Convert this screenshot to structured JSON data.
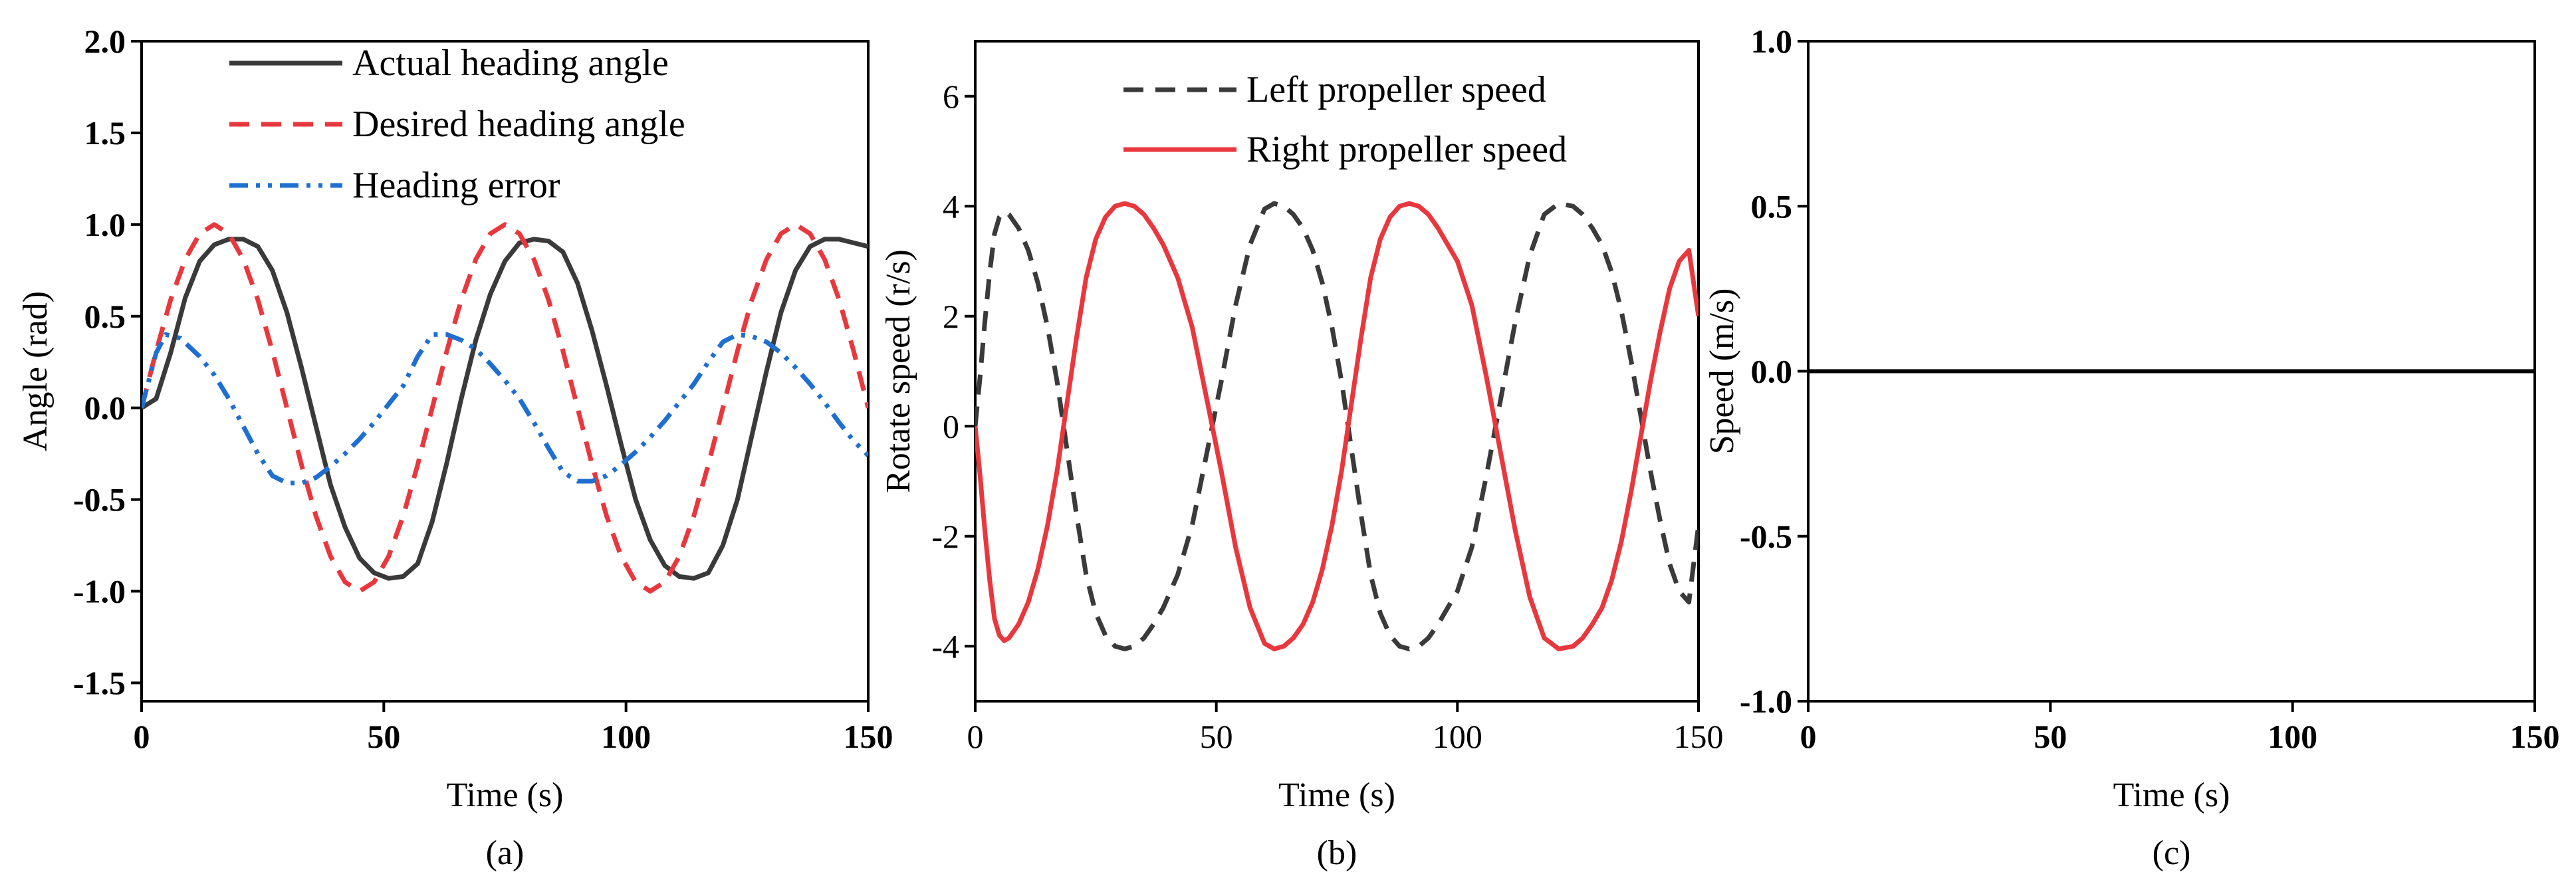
{
  "figure": {
    "captions": [
      "(a)",
      "(b)",
      "(c)"
    ]
  },
  "chart_data": [
    {
      "type": "line",
      "caption": "(a)",
      "xlabel": "Time (s)",
      "ylabel": "Angle (rad)",
      "xlim": [
        0,
        150
      ],
      "ylim": [
        -1.6,
        2.0
      ],
      "xticks": [
        0,
        50,
        100,
        150
      ],
      "yticks": [
        -1.5,
        -1.0,
        -0.5,
        0.0,
        0.5,
        1.0,
        1.5,
        2.0
      ],
      "ytick_labels": [
        "-1.5",
        "-1.0",
        "-0.5",
        "0.0",
        "0.5",
        "1.0",
        "1.5",
        "2.0"
      ],
      "tick_bold": true,
      "grid": false,
      "legend_position": "top-center",
      "series": [
        {
          "name": "Actual heading angle",
          "color": "#3a3a3a",
          "dash": "solid",
          "x": [
            0,
            3,
            6,
            9,
            12,
            15,
            18,
            21,
            24,
            27,
            30,
            33,
            36,
            39,
            42,
            45,
            48,
            51,
            54,
            57,
            60,
            63,
            66,
            69,
            72,
            75,
            78,
            81,
            84,
            87,
            90,
            93,
            96,
            99,
            102,
            105,
            108,
            111,
            114,
            117,
            120,
            123,
            126,
            129,
            132,
            135,
            138,
            141,
            144,
            147,
            150
          ],
          "y": [
            0.0,
            0.05,
            0.3,
            0.6,
            0.8,
            0.89,
            0.92,
            0.92,
            0.88,
            0.75,
            0.52,
            0.22,
            -0.1,
            -0.42,
            -0.65,
            -0.82,
            -0.9,
            -0.93,
            -0.92,
            -0.85,
            -0.62,
            -0.3,
            0.05,
            0.37,
            0.62,
            0.8,
            0.9,
            0.92,
            0.91,
            0.85,
            0.68,
            0.42,
            0.12,
            -0.2,
            -0.5,
            -0.72,
            -0.86,
            -0.92,
            -0.93,
            -0.9,
            -0.75,
            -0.5,
            -0.15,
            0.2,
            0.52,
            0.75,
            0.88,
            0.92,
            0.92,
            0.9,
            0.88
          ]
        },
        {
          "name": "Desired heading angle",
          "color": "#e8383d",
          "dash": "dashed",
          "x": [
            0,
            3,
            6,
            9,
            12,
            15,
            18,
            21,
            24,
            27,
            30,
            33,
            36,
            39,
            42,
            45,
            48,
            51,
            54,
            57,
            60,
            63,
            66,
            69,
            72,
            75,
            78,
            81,
            84,
            87,
            90,
            93,
            96,
            99,
            102,
            105,
            108,
            111,
            114,
            117,
            120,
            123,
            126,
            129,
            132,
            135,
            138,
            141,
            144,
            147,
            150
          ],
          "y": [
            0.0,
            0.31,
            0.59,
            0.81,
            0.95,
            1.0,
            0.95,
            0.81,
            0.59,
            0.31,
            0.0,
            -0.31,
            -0.59,
            -0.81,
            -0.95,
            -1.0,
            -0.95,
            -0.81,
            -0.59,
            -0.31,
            0.0,
            0.31,
            0.59,
            0.81,
            0.95,
            1.0,
            0.95,
            0.81,
            0.59,
            0.31,
            0.0,
            -0.31,
            -0.59,
            -0.81,
            -0.95,
            -1.0,
            -0.95,
            -0.81,
            -0.59,
            -0.31,
            0.0,
            0.31,
            0.59,
            0.81,
            0.95,
            1.0,
            0.95,
            0.81,
            0.59,
            0.31,
            0.0
          ]
        },
        {
          "name": "Heading error",
          "color": "#1f6fd1",
          "dash": "dash-dot-dot",
          "x": [
            0,
            3,
            5,
            8,
            12,
            15,
            18,
            21,
            24,
            27,
            30,
            33,
            36,
            39,
            42,
            45,
            48,
            51,
            54,
            57,
            60,
            63,
            66,
            69,
            72,
            75,
            78,
            81,
            84,
            87,
            90,
            93,
            96,
            99,
            102,
            105,
            108,
            111,
            114,
            117,
            120,
            123,
            126,
            129,
            132,
            135,
            138,
            141,
            144,
            147,
            150
          ],
          "y": [
            0.0,
            0.3,
            0.4,
            0.38,
            0.28,
            0.18,
            0.05,
            -0.1,
            -0.25,
            -0.37,
            -0.41,
            -0.41,
            -0.38,
            -0.32,
            -0.25,
            -0.17,
            -0.08,
            0.02,
            0.12,
            0.28,
            0.4,
            0.4,
            0.37,
            0.32,
            0.24,
            0.15,
            0.05,
            -0.08,
            -0.22,
            -0.35,
            -0.4,
            -0.4,
            -0.37,
            -0.31,
            -0.24,
            -0.16,
            -0.07,
            0.03,
            0.13,
            0.25,
            0.36,
            0.4,
            0.39,
            0.36,
            0.3,
            0.22,
            0.13,
            0.03,
            -0.08,
            -0.18,
            -0.26
          ]
        }
      ]
    },
    {
      "type": "line",
      "caption": "(b)",
      "xlabel": "Time (s)",
      "ylabel": "Rotate speed (r/s)",
      "xlim": [
        0,
        150
      ],
      "ylim": [
        -5,
        7
      ],
      "xticks": [
        0,
        50,
        100,
        150
      ],
      "yticks": [
        -4,
        -2,
        0,
        2,
        4,
        6
      ],
      "ytick_labels": [
        "-4",
        "-2",
        "0",
        "2",
        "4",
        "6"
      ],
      "tick_bold": false,
      "grid": false,
      "legend_position": "top-right",
      "series": [
        {
          "name": "Left propeller speed",
          "color": "#3a3a3a",
          "dash": "dashed",
          "x": [
            0,
            1,
            2,
            3,
            4,
            5,
            6,
            7,
            9,
            11,
            13,
            15,
            17,
            19,
            21,
            23,
            25,
            27,
            29,
            31,
            33,
            35,
            37,
            39,
            42,
            45,
            48,
            51,
            54,
            57,
            60,
            62,
            64,
            66,
            68,
            70,
            72,
            74,
            76,
            78,
            80,
            82,
            84,
            86,
            88,
            90,
            92,
            94,
            96,
            98,
            100,
            103,
            106,
            109,
            112,
            115,
            118,
            121,
            124,
            126,
            128,
            130,
            132,
            134,
            136,
            138,
            140,
            142,
            144,
            146,
            148,
            150
          ],
          "y": [
            0.0,
            0.9,
            1.9,
            2.8,
            3.5,
            3.8,
            3.9,
            3.85,
            3.6,
            3.2,
            2.6,
            1.8,
            0.8,
            -0.4,
            -1.6,
            -2.7,
            -3.4,
            -3.8,
            -4.0,
            -4.05,
            -4.0,
            -3.85,
            -3.6,
            -3.3,
            -2.7,
            -1.8,
            -0.5,
            0.8,
            2.2,
            3.3,
            3.95,
            4.05,
            4.0,
            3.85,
            3.6,
            3.2,
            2.6,
            1.8,
            0.8,
            -0.4,
            -1.6,
            -2.7,
            -3.4,
            -3.8,
            -4.0,
            -4.05,
            -4.0,
            -3.85,
            -3.6,
            -3.3,
            -3.0,
            -2.2,
            -0.9,
            0.5,
            1.9,
            3.1,
            3.85,
            4.05,
            4.0,
            3.85,
            3.6,
            3.3,
            2.8,
            2.1,
            1.2,
            0.2,
            -0.8,
            -1.7,
            -2.5,
            -3.0,
            -3.2,
            -1.8
          ]
        },
        {
          "name": "Right propeller speed",
          "color": "#e8383d",
          "dash": "solid",
          "x": [
            0,
            1,
            2,
            3,
            4,
            5,
            6,
            7,
            9,
            11,
            13,
            15,
            17,
            19,
            21,
            23,
            25,
            27,
            29,
            31,
            33,
            35,
            37,
            39,
            42,
            45,
            48,
            51,
            54,
            57,
            60,
            62,
            64,
            66,
            68,
            70,
            72,
            74,
            76,
            78,
            80,
            82,
            84,
            86,
            88,
            90,
            92,
            94,
            96,
            98,
            100,
            103,
            106,
            109,
            112,
            115,
            118,
            121,
            124,
            126,
            128,
            130,
            132,
            134,
            136,
            138,
            140,
            142,
            144,
            146,
            148,
            150
          ],
          "y": [
            0.0,
            -0.9,
            -1.9,
            -2.8,
            -3.5,
            -3.8,
            -3.9,
            -3.85,
            -3.6,
            -3.2,
            -2.6,
            -1.8,
            -0.8,
            0.4,
            1.6,
            2.7,
            3.4,
            3.8,
            4.0,
            4.05,
            4.0,
            3.85,
            3.6,
            3.3,
            2.7,
            1.8,
            0.5,
            -0.8,
            -2.2,
            -3.3,
            -3.95,
            -4.05,
            -4.0,
            -3.85,
            -3.6,
            -3.2,
            -2.6,
            -1.8,
            -0.8,
            0.4,
            1.6,
            2.7,
            3.4,
            3.8,
            4.0,
            4.05,
            4.0,
            3.85,
            3.6,
            3.3,
            3.0,
            2.2,
            0.9,
            -0.5,
            -1.9,
            -3.1,
            -3.85,
            -4.05,
            -4.0,
            -3.85,
            -3.6,
            -3.3,
            -2.8,
            -2.1,
            -1.2,
            -0.2,
            0.8,
            1.7,
            2.5,
            3.0,
            3.2,
            2.0
          ]
        }
      ]
    },
    {
      "type": "line",
      "caption": "(c)",
      "xlabel": "Time (s)",
      "ylabel": "Speed (m/s)",
      "xlim": [
        0,
        150
      ],
      "ylim": [
        -1.0,
        1.0
      ],
      "xticks": [
        0,
        50,
        100,
        150
      ],
      "yticks": [
        -1.0,
        -0.5,
        0.0,
        0.5,
        1.0
      ],
      "ytick_labels": [
        "-1.0",
        "-0.5",
        "0.0",
        "0.5",
        "1.0"
      ],
      "tick_bold": true,
      "grid": false,
      "legend_position": "none",
      "series": [
        {
          "color": "#000000",
          "dash": "solid",
          "x": [
            0,
            150
          ],
          "y": [
            0.0,
            0.0
          ]
        }
      ]
    }
  ]
}
